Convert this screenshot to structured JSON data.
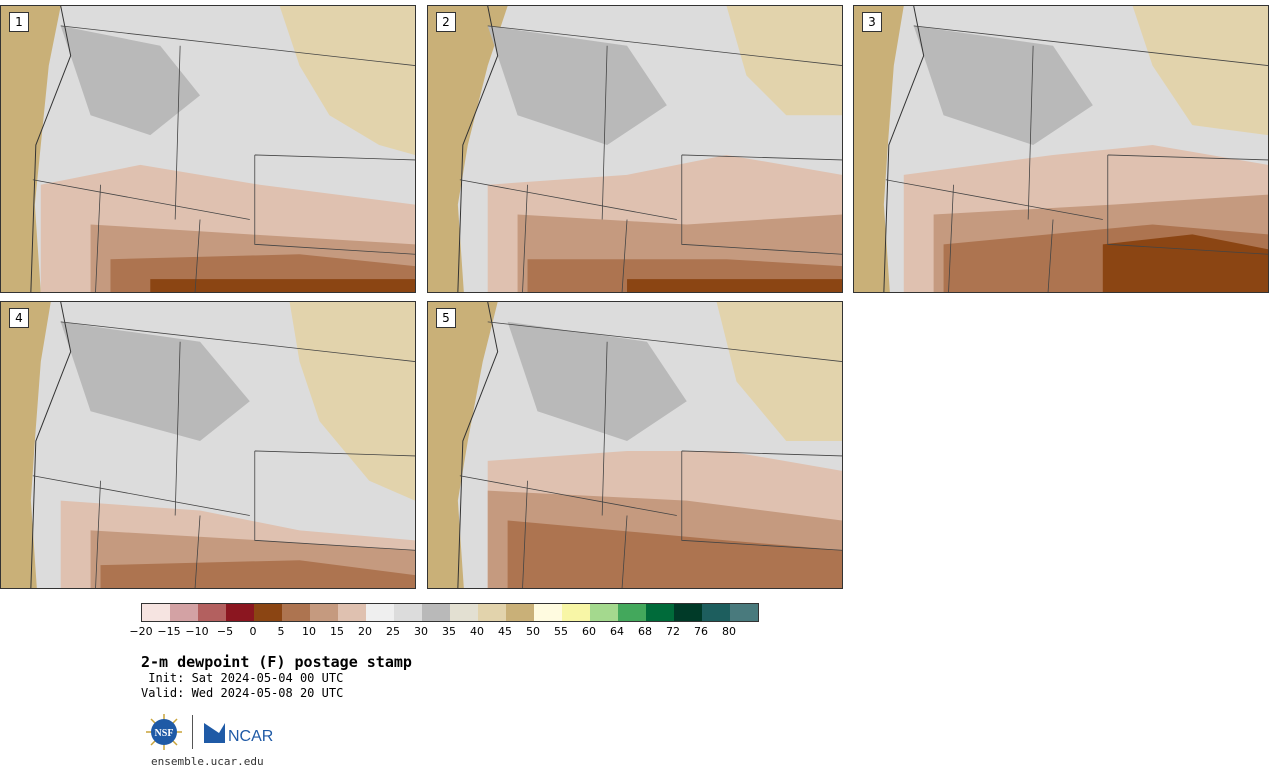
{
  "panels": [
    {
      "label": "1"
    },
    {
      "label": "2"
    },
    {
      "label": "3"
    },
    {
      "label": "4"
    },
    {
      "label": "5"
    }
  ],
  "colorbar": {
    "colors": [
      "#f6e4e1",
      "#d3a2a4",
      "#b3605f",
      "#8b1620",
      "#8b4513",
      "#ad7450",
      "#c59a7f",
      "#dfc1b0",
      "#efefef",
      "#dcdcdc",
      "#b9b9b9",
      "#e3e0d2",
      "#e2d3ac",
      "#c9b078",
      "#fffbe0",
      "#f8f6a6",
      "#a4d98e",
      "#43a85c",
      "#006b3a",
      "#003a28",
      "#1d5e5e",
      "#497a7d"
    ],
    "ticks": [
      "−20",
      "−15",
      "−10",
      "−5",
      "0",
      "5",
      "10",
      "15",
      "20",
      "25",
      "30",
      "35",
      "40",
      "45",
      "50",
      "55",
      "60",
      "64",
      "68",
      "72",
      "76",
      "80"
    ]
  },
  "title": "2-m dewpoint (F) postage stamp",
  "init": " Init: Sat 2024-05-04 00 UTC",
  "valid": "Valid: Wed 2024-05-08 20 UTC",
  "logos": {
    "nsf": "NSF",
    "ncar": "NCAR"
  },
  "website": "ensemble.ucar.edu"
}
